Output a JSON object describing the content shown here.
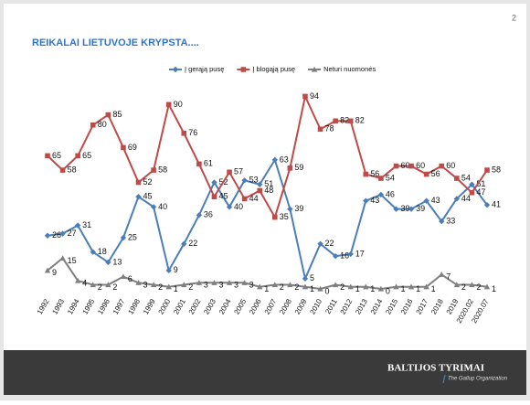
{
  "chart_data": {
    "type": "line",
    "title": "REIKALAI LIETUVOJE KRYPSTA....",
    "categories": [
      "1992",
      "1993",
      "1994",
      "1995",
      "1996",
      "1997",
      "1998",
      "1999",
      "2000",
      "2001",
      "2002",
      "2003",
      "2004",
      "2005",
      "2006",
      "2007",
      "2008",
      "2009",
      "2010",
      "2011",
      "2012",
      "2013",
      "2014",
      "2015",
      "2016",
      "2017",
      "2018",
      "2019",
      "2020.02",
      "2020.07"
    ],
    "series": [
      {
        "name": "Į gerąją pusę",
        "color": "#4a7ebb",
        "marker": "diamond",
        "values": [
          26,
          27,
          31,
          18,
          13,
          25,
          45,
          40,
          9,
          22,
          36,
          52,
          40,
          53,
          51,
          63,
          39,
          5,
          22,
          16,
          17,
          43,
          46,
          39,
          39,
          43,
          33,
          44,
          51,
          41
        ]
      },
      {
        "name": "Į blogąją pusę",
        "color": "#be4b48",
        "marker": "square",
        "values": [
          65,
          58,
          65,
          80,
          85,
          69,
          52,
          58,
          90,
          76,
          61,
          45,
          57,
          44,
          48,
          35,
          59,
          94,
          78,
          82,
          82,
          56,
          54,
          60,
          60,
          56,
          60,
          54,
          47,
          58
        ]
      },
      {
        "name": "Neturi nuomonės",
        "color": "#7f7f7f",
        "marker": "triangle",
        "values": [
          9,
          15,
          4,
          2,
          2,
          6,
          3,
          2,
          1,
          2,
          3,
          3,
          3,
          3,
          1,
          2,
          2,
          1,
          0,
          2,
          1,
          1,
          0,
          1,
          1,
          1,
          7,
          2,
          2,
          1
        ]
      }
    ],
    "ylim": [
      0,
      100
    ]
  },
  "page_number": "2",
  "footer": {
    "brand": "BALTIJOS TYRIMAI",
    "tagline": "The Gallup Organization"
  }
}
